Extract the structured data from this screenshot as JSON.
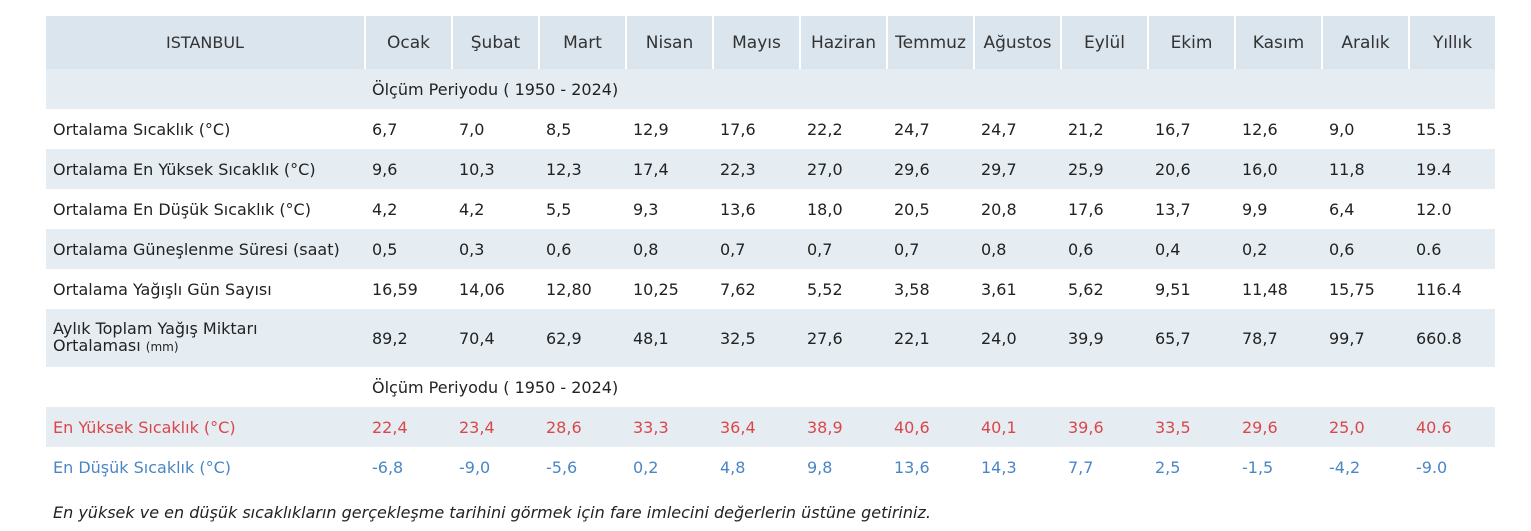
{
  "table": {
    "city": "ISTANBUL",
    "months": [
      "Ocak",
      "Şubat",
      "Mart",
      "Nisan",
      "Mayıs",
      "Haziran",
      "Temmuz",
      "Ağustos",
      "Eylül",
      "Ekim",
      "Kasım",
      "Aralık",
      "Yıllık"
    ],
    "period_label_1": "Ölçüm Periyodu ( 1950 - 2024)",
    "period_label_2": "Ölçüm Periyodu ( 1950 - 2024)",
    "rows": [
      {
        "label": "Ortalama Sıcaklık (°C)",
        "values": [
          "6,7",
          "7,0",
          "8,5",
          "12,9",
          "17,6",
          "22,2",
          "24,7",
          "24,7",
          "21,2",
          "16,7",
          "12,6",
          "9,0",
          "15.3"
        ]
      },
      {
        "label": "Ortalama En Yüksek Sıcaklık (°C)",
        "values": [
          "9,6",
          "10,3",
          "12,3",
          "17,4",
          "22,3",
          "27,0",
          "29,6",
          "29,7",
          "25,9",
          "20,6",
          "16,0",
          "11,8",
          "19.4"
        ]
      },
      {
        "label": "Ortalama En Düşük Sıcaklık (°C)",
        "values": [
          "4,2",
          "4,2",
          "5,5",
          "9,3",
          "13,6",
          "18,0",
          "20,5",
          "20,8",
          "17,6",
          "13,7",
          "9,9",
          "6,4",
          "12.0"
        ]
      },
      {
        "label": "Ortalama Güneşlenme Süresi (saat)",
        "values": [
          "0,5",
          "0,3",
          "0,6",
          "0,8",
          "0,7",
          "0,7",
          "0,7",
          "0,8",
          "0,6",
          "0,4",
          "0,2",
          "0,6",
          "0.6"
        ]
      },
      {
        "label": "Ortalama Yağışlı Gün Sayısı",
        "values": [
          "16,59",
          "14,06",
          "12,80",
          "10,25",
          "7,62",
          "5,52",
          "3,58",
          "3,61",
          "5,62",
          "9,51",
          "11,48",
          "15,75",
          "116.4"
        ]
      },
      {
        "label_line1": "Aylık Toplam Yağış Miktarı",
        "label_line2": "Ortalaması",
        "label_unit": "(mm)",
        "values": [
          "89,2",
          "70,4",
          "62,9",
          "48,1",
          "32,5",
          "27,6",
          "22,1",
          "24,0",
          "39,9",
          "65,7",
          "78,7",
          "99,7",
          "660.8"
        ]
      }
    ],
    "extreme_high": {
      "label": "En Yüksek Sıcaklık (°C)",
      "values": [
        "22,4",
        "23,4",
        "28,6",
        "33,3",
        "36,4",
        "38,9",
        "40,6",
        "40,1",
        "39,6",
        "33,5",
        "29,6",
        "25,0",
        "40.6"
      ]
    },
    "extreme_low": {
      "label": "En Düşük Sıcaklık (°C)",
      "values": [
        "-6,8",
        "-9,0",
        "-5,6",
        "0,2",
        "4,8",
        "9,8",
        "13,6",
        "14,3",
        "7,7",
        "2,5",
        "-1,5",
        "-4,2",
        "-9.0"
      ]
    }
  },
  "note": "En yüksek ve en düşük sıcaklıkların gerçekleşme tarihini görmek için fare imlecini değerlerin üstüne getiriniz.",
  "colors": {
    "header_bg": "#dbe5ed",
    "row_shade": "#e6edf2",
    "high": "#d9474b",
    "low": "#4a86c5"
  }
}
